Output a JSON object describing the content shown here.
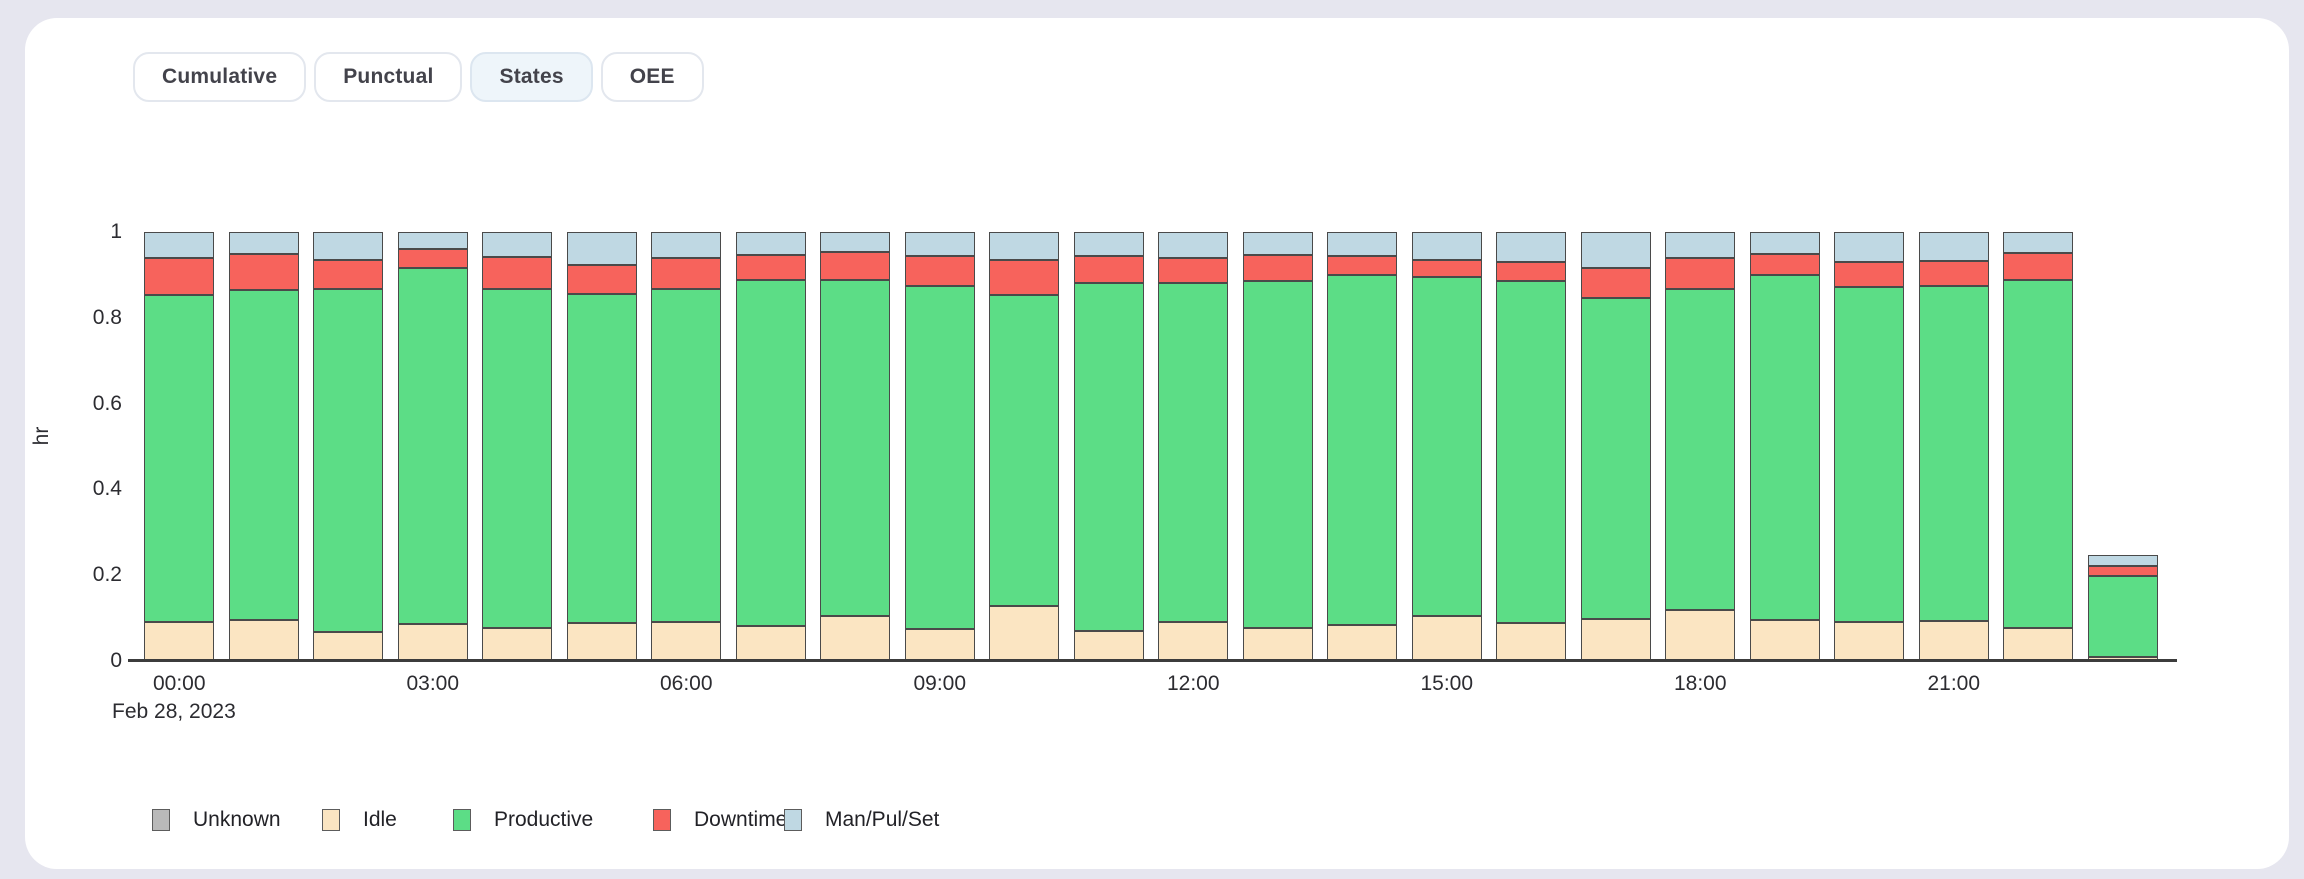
{
  "tabs": {
    "items": [
      {
        "label": "Cumulative",
        "active": false
      },
      {
        "label": "Punctual",
        "active": false
      },
      {
        "label": "States",
        "active": true
      },
      {
        "label": "OEE",
        "active": false
      }
    ]
  },
  "chart_data": {
    "type": "bar",
    "stacked": true,
    "title": "",
    "xlabel": "",
    "ylabel": "hr",
    "date_label": "Feb 28, 2023",
    "ylim": [
      0,
      1
    ],
    "yticks": [
      0,
      0.2,
      0.4,
      0.6,
      0.8,
      1
    ],
    "ytick_labels": [
      "0",
      "0.2",
      "0.4",
      "0.6",
      "0.8",
      "1"
    ],
    "grid": false,
    "legend_position": "bottom",
    "categories": [
      "00:00",
      "01:00",
      "02:00",
      "03:00",
      "04:00",
      "05:00",
      "06:00",
      "07:00",
      "08:00",
      "09:00",
      "10:00",
      "11:00",
      "12:00",
      "13:00",
      "14:00",
      "15:00",
      "16:00",
      "17:00",
      "18:00",
      "19:00",
      "20:00",
      "21:00",
      "22:00",
      "23:00"
    ],
    "xticks": [
      {
        "index": 0,
        "label": "00:00"
      },
      {
        "index": 3,
        "label": "03:00"
      },
      {
        "index": 6,
        "label": "06:00"
      },
      {
        "index": 9,
        "label": "09:00"
      },
      {
        "index": 12,
        "label": "12:00"
      },
      {
        "index": 15,
        "label": "15:00"
      },
      {
        "index": 18,
        "label": "18:00"
      },
      {
        "index": 21,
        "label": "21:00"
      }
    ],
    "series": [
      {
        "name": "Unknown",
        "color": "#b9b9b9",
        "values": [
          0,
          0,
          0,
          0,
          0,
          0,
          0,
          0,
          0,
          0,
          0,
          0,
          0,
          0,
          0,
          0,
          0,
          0,
          0,
          0,
          0,
          0,
          0,
          0
        ]
      },
      {
        "name": "Idle",
        "color": "#fbe5c2",
        "values": [
          0.092,
          0.096,
          0.068,
          0.087,
          0.078,
          0.089,
          0.092,
          0.082,
          0.104,
          0.075,
          0.129,
          0.071,
          0.092,
          0.078,
          0.085,
          0.104,
          0.089,
          0.099,
          0.12,
          0.096,
          0.092,
          0.094,
          0.078,
          0.01
        ]
      },
      {
        "name": "Productive",
        "color": "#5cdd86",
        "values": [
          0.762,
          0.768,
          0.798,
          0.828,
          0.79,
          0.767,
          0.774,
          0.807,
          0.783,
          0.8,
          0.725,
          0.811,
          0.788,
          0.807,
          0.814,
          0.792,
          0.796,
          0.748,
          0.748,
          0.803,
          0.779,
          0.781,
          0.811,
          0.188
        ]
      },
      {
        "name": "Downtime",
        "color": "#f7635c",
        "values": [
          0.085,
          0.084,
          0.068,
          0.045,
          0.073,
          0.066,
          0.073,
          0.057,
          0.066,
          0.069,
          0.08,
          0.062,
          0.059,
          0.061,
          0.045,
          0.038,
          0.044,
          0.068,
          0.071,
          0.049,
          0.058,
          0.057,
          0.062,
          0.024
        ]
      },
      {
        "name": "Man/Pul/Set",
        "color": "#bfd8e3",
        "values": [
          0.061,
          0.052,
          0.066,
          0.04,
          0.059,
          0.078,
          0.061,
          0.054,
          0.047,
          0.056,
          0.066,
          0.056,
          0.061,
          0.054,
          0.056,
          0.066,
          0.071,
          0.085,
          0.061,
          0.052,
          0.071,
          0.068,
          0.049,
          0.026
        ]
      }
    ]
  }
}
